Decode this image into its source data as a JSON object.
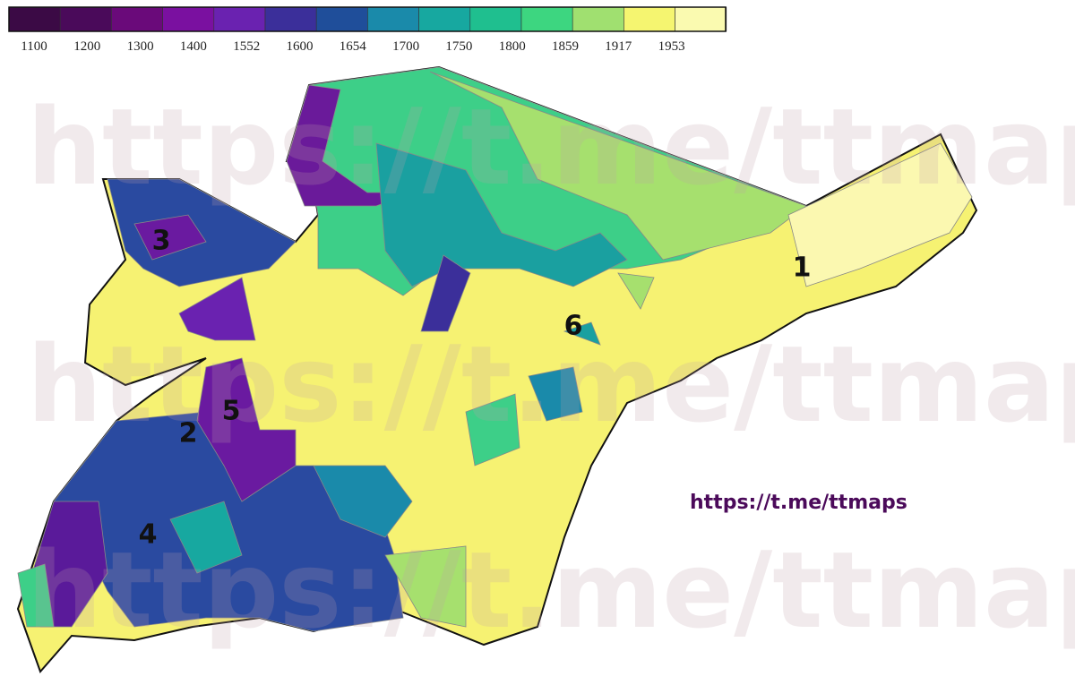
{
  "legend": {
    "labels": [
      "1100",
      "1200",
      "1300",
      "1400",
      "1552",
      "1600",
      "1654",
      "1700",
      "1750",
      "1800",
      "1859",
      "1917",
      "1953"
    ]
  },
  "map_labels": [
    "1",
    "2",
    "3",
    "4",
    "5",
    "6"
  ],
  "link": "https://t.me/ttmaps",
  "watermarks": [
    "https://t.me/ttmaps",
    "https://t.me/ttmaps",
    "https://t.me/ttmaps"
  ]
}
